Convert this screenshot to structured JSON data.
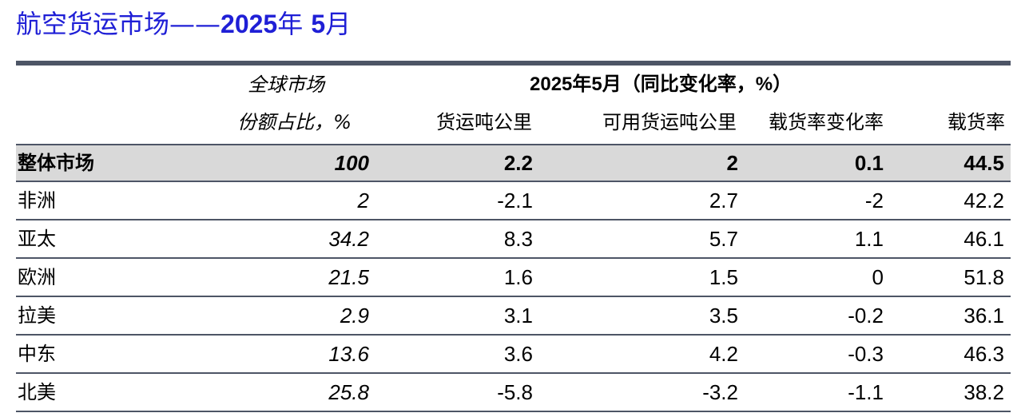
{
  "title": {
    "prefix": "航空货运市场——",
    "year": "2025",
    "year_suffix": "年 ",
    "month": "5",
    "month_suffix": "月"
  },
  "header": {
    "share_line1": "全球市场",
    "share_line2": "份额占比，%",
    "group_label": "2025年5月（同比变化率，%）",
    "columns": [
      "货运吨公里",
      "可用货运吨公里",
      "载货率变化率",
      "载货率"
    ]
  },
  "rows": [
    {
      "region": "整体市场",
      "share": "100",
      "ctk": "2.2",
      "actk": "2",
      "lf_change": "0.1",
      "lf": "44.5"
    },
    {
      "region": "非洲",
      "share": "2",
      "ctk": "-2.1",
      "actk": "2.7",
      "lf_change": "-2",
      "lf": "42.2"
    },
    {
      "region": "亚太",
      "share": "34.2",
      "ctk": "8.3",
      "actk": "5.7",
      "lf_change": "1.1",
      "lf": "46.1"
    },
    {
      "region": "欧洲",
      "share": "21.5",
      "ctk": "1.6",
      "actk": "1.5",
      "lf_change": "0",
      "lf": "51.8"
    },
    {
      "region": "拉美",
      "share": "2.9",
      "ctk": "3.1",
      "actk": "3.5",
      "lf_change": "-0.2",
      "lf": "36.1"
    },
    {
      "region": "中东",
      "share": "13.6",
      "ctk": "3.6",
      "actk": "4.2",
      "lf_change": "-0.3",
      "lf": "46.3"
    },
    {
      "region": "北美",
      "share": "25.8",
      "ctk": "-5.8",
      "actk": "-3.2",
      "lf_change": "-1.1",
      "lf": "38.2"
    }
  ],
  "colors": {
    "title": "#1f1fd6",
    "rule": "#4d5566",
    "total_row_bg": "#d9d9d9"
  }
}
